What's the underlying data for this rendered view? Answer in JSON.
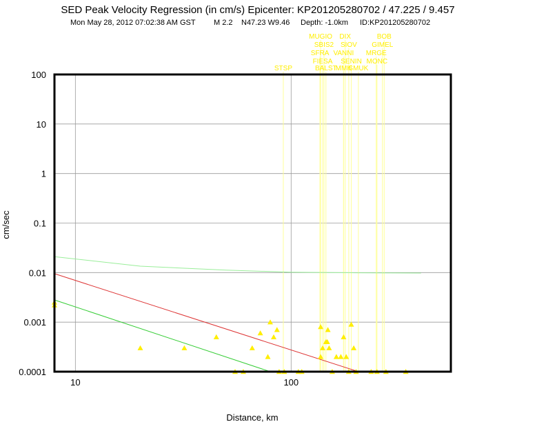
{
  "chart_data": {
    "type": "scatter",
    "title": "SED Peak Velocity Regression (in cm/s) Epicenter: KP201205280702 / 47.225 / 9.457",
    "subtitle": {
      "date": "Mon May 28, 2012 07:02:38 AM GST",
      "magnitude": "M 2.2",
      "location": "N47.23 W9.46",
      "depth": "Depth: -1.0km",
      "id": "ID:KP201205280702"
    },
    "xlabel": "Distance, km",
    "ylabel": "cm/sec",
    "x_scale": "log",
    "y_scale": "log",
    "xlim": [
      8,
      550
    ],
    "ylim": [
      0.0001,
      100
    ],
    "x_ticks": [
      10,
      100
    ],
    "x_tick_labels": [
      "10",
      "100"
    ],
    "y_ticks": [
      0.0001,
      0.001,
      0.01,
      0.1,
      1,
      10,
      100
    ],
    "y_tick_labels": [
      "0.0001",
      "0.001",
      "0.01",
      "0.1",
      "1",
      "10",
      "100"
    ],
    "grid": true,
    "colors": {
      "points": "#ffee00",
      "station_lines": "#ffff99",
      "station_labels": "#ffee00",
      "regression_red": "#dd3333",
      "regression_green": "#33cc33",
      "regression_light_green": "#99ee99"
    },
    "regression_lines": [
      {
        "color": "#dd3333",
        "x": [
          8,
          205
        ],
        "y": [
          0.0095,
          0.0001
        ]
      },
      {
        "color": "#33cc33",
        "x": [
          8,
          80
        ],
        "y": [
          0.0028,
          0.0001
        ]
      },
      {
        "color": "#99ee99",
        "x": [
          8,
          20,
          50,
          100,
          200,
          400
        ],
        "y": [
          0.021,
          0.0135,
          0.0112,
          0.0102,
          0.0099,
          0.0098
        ]
      }
    ],
    "stations": [
      {
        "label": "MUGIO",
        "x": 137
      },
      {
        "label": "DIX",
        "x": 178
      },
      {
        "label": "BOB",
        "x": 270
      },
      {
        "label": "SBIS2",
        "x": 142
      },
      {
        "label": "SIOV",
        "x": 185
      },
      {
        "label": "GIMEL",
        "x": 265
      },
      {
        "label": "SFRA",
        "x": 136
      },
      {
        "label": "VANNI",
        "x": 175
      },
      {
        "label": "MRGE",
        "x": 248
      },
      {
        "label": "FIESA",
        "x": 140
      },
      {
        "label": "SENIN",
        "x": 190
      },
      {
        "label": "MONC",
        "x": 250
      },
      {
        "label": "STSP",
        "x": 92
      },
      {
        "label": "BALST",
        "x": 145
      },
      {
        "label": "MMK",
        "x": 175
      },
      {
        "label": "SMUK",
        "x": 205
      }
    ],
    "points": [
      {
        "x": 8,
        "y": 0.0025
      },
      {
        "x": 8,
        "y": 0.0022
      },
      {
        "x": 20,
        "y": 0.0003
      },
      {
        "x": 32,
        "y": 0.0003
      },
      {
        "x": 45,
        "y": 0.0005
      },
      {
        "x": 55,
        "y": 0.0001
      },
      {
        "x": 60,
        "y": 0.0001
      },
      {
        "x": 66,
        "y": 0.0003
      },
      {
        "x": 72,
        "y": 0.0006
      },
      {
        "x": 78,
        "y": 0.0002
      },
      {
        "x": 80,
        "y": 0.001
      },
      {
        "x": 83,
        "y": 0.0005
      },
      {
        "x": 86,
        "y": 0.0007
      },
      {
        "x": 88,
        "y": 0.0001
      },
      {
        "x": 93,
        "y": 0.0001
      },
      {
        "x": 108,
        "y": 0.0001
      },
      {
        "x": 112,
        "y": 0.0001
      },
      {
        "x": 137,
        "y": 0.0008
      },
      {
        "x": 137,
        "y": 0.0002
      },
      {
        "x": 140,
        "y": 0.0003
      },
      {
        "x": 145,
        "y": 0.0004
      },
      {
        "x": 147,
        "y": 0.0004
      },
      {
        "x": 148,
        "y": 0.0007
      },
      {
        "x": 150,
        "y": 0.0003
      },
      {
        "x": 155,
        "y": 0.0001
      },
      {
        "x": 162,
        "y": 0.0002
      },
      {
        "x": 170,
        "y": 0.0002
      },
      {
        "x": 175,
        "y": 0.0005
      },
      {
        "x": 180,
        "y": 0.0002
      },
      {
        "x": 185,
        "y": 0.0001
      },
      {
        "x": 190,
        "y": 0.0009
      },
      {
        "x": 195,
        "y": 0.0003
      },
      {
        "x": 200,
        "y": 0.0001
      },
      {
        "x": 235,
        "y": 0.0001
      },
      {
        "x": 250,
        "y": 0.0001
      },
      {
        "x": 275,
        "y": 0.0001
      },
      {
        "x": 340,
        "y": 0.0001
      }
    ]
  }
}
